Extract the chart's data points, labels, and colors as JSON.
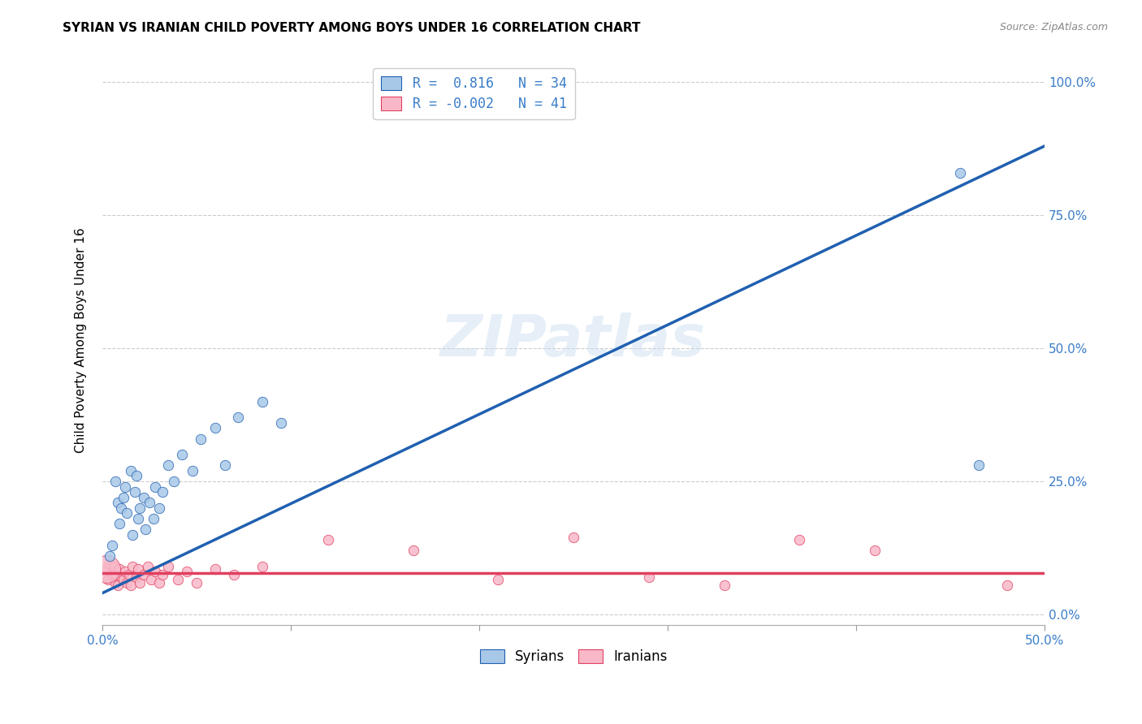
{
  "title": "SYRIAN VS IRANIAN CHILD POVERTY AMONG BOYS UNDER 16 CORRELATION CHART",
  "source": "Source: ZipAtlas.com",
  "xlabel": "",
  "ylabel": "Child Poverty Among Boys Under 16",
  "xlim": [
    0.0,
    0.5
  ],
  "ylim": [
    -0.02,
    1.05
  ],
  "xticks": [
    0.0,
    0.1,
    0.2,
    0.3,
    0.4,
    0.5
  ],
  "xticklabels": [
    "0.0%",
    "",
    "",
    "",
    "",
    "50.0%"
  ],
  "yticks": [
    0.0,
    0.25,
    0.5,
    0.75,
    1.0
  ],
  "yticklabels": [
    "0.0%",
    "25.0%",
    "50.0%",
    "75.0%",
    "100.0%"
  ],
  "grid_color": "#cccccc",
  "background_color": "#ffffff",
  "watermark": "ZIPatlas",
  "legend_r1": "R =  0.816",
  "legend_n1": "N = 34",
  "legend_r2": "R = -0.002",
  "legend_n2": "N = 41",
  "syrian_color": "#a8c8e8",
  "iranian_color": "#f8b8c8",
  "trendline_syrian_color": "#2060b0",
  "trendline_iranian_color": "#e04060",
  "syrian_x": [
    0.004,
    0.005,
    0.007,
    0.008,
    0.009,
    0.01,
    0.011,
    0.012,
    0.013,
    0.015,
    0.016,
    0.017,
    0.018,
    0.019,
    0.02,
    0.022,
    0.023,
    0.025,
    0.027,
    0.028,
    0.03,
    0.032,
    0.035,
    0.038,
    0.042,
    0.048,
    0.052,
    0.06,
    0.065,
    0.072,
    0.085,
    0.095,
    0.455,
    0.465
  ],
  "syrian_y": [
    0.11,
    0.13,
    0.25,
    0.21,
    0.17,
    0.2,
    0.22,
    0.24,
    0.19,
    0.27,
    0.15,
    0.23,
    0.26,
    0.18,
    0.2,
    0.22,
    0.16,
    0.21,
    0.18,
    0.24,
    0.2,
    0.23,
    0.28,
    0.25,
    0.3,
    0.27,
    0.33,
    0.35,
    0.28,
    0.37,
    0.4,
    0.36,
    0.83,
    0.28
  ],
  "iranian_x": [
    0.002,
    0.003,
    0.004,
    0.005,
    0.006,
    0.007,
    0.007,
    0.008,
    0.009,
    0.01,
    0.011,
    0.012,
    0.013,
    0.014,
    0.015,
    0.016,
    0.018,
    0.019,
    0.02,
    0.022,
    0.024,
    0.026,
    0.028,
    0.03,
    0.032,
    0.035,
    0.04,
    0.045,
    0.05,
    0.06,
    0.07,
    0.085,
    0.12,
    0.165,
    0.21,
    0.25,
    0.29,
    0.33,
    0.37,
    0.41,
    0.48
  ],
  "iranian_y": [
    0.085,
    0.065,
    0.095,
    0.075,
    0.09,
    0.06,
    0.075,
    0.055,
    0.085,
    0.07,
    0.065,
    0.08,
    0.06,
    0.075,
    0.055,
    0.09,
    0.07,
    0.085,
    0.06,
    0.075,
    0.09,
    0.065,
    0.08,
    0.06,
    0.075,
    0.09,
    0.065,
    0.08,
    0.06,
    0.085,
    0.075,
    0.09,
    0.14,
    0.12,
    0.065,
    0.145,
    0.07,
    0.055,
    0.14,
    0.12,
    0.055
  ],
  "iranian_large_x": [
    0.002
  ],
  "iranian_large_y": [
    0.085
  ],
  "syrian_trend_x": [
    0.0,
    0.5
  ],
  "syrian_trend_y": [
    0.04,
    0.88
  ],
  "iranian_trend_x": [
    0.0,
    0.5
  ],
  "iranian_trend_y": [
    0.077,
    0.077
  ]
}
